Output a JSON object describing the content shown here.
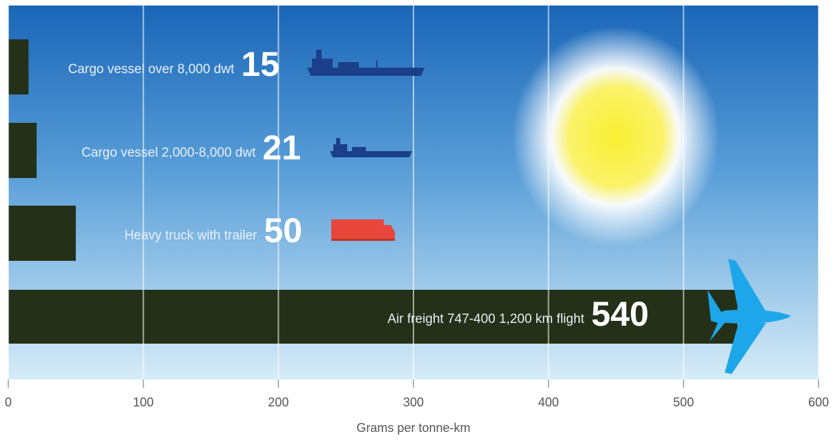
{
  "chart_data": {
    "type": "hbar",
    "categories": [
      "Cargo vessel over 8,000 dwt",
      "Cargo vessel 2,000-8,000 dwt",
      "Heavy truck with trailer",
      "Air freight 747-400 1,200 km flight"
    ],
    "values": [
      15,
      21,
      50,
      540
    ],
    "color": "#243118",
    "xlim": [
      0,
      600
    ],
    "xticks": [
      0,
      100,
      200,
      300,
      400,
      500,
      600
    ],
    "xlabel": "Grams per tonne-km",
    "grid": true
  }
}
